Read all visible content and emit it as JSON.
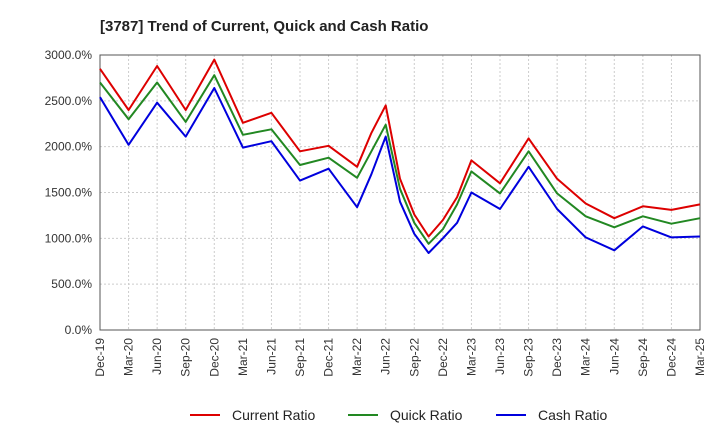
{
  "chart_data": {
    "type": "line",
    "title": "[3787]  Trend of Current, Quick and Cash Ratio",
    "xlabel": "",
    "ylabel": "",
    "ylim": [
      0,
      3000
    ],
    "y_ticks": [
      0,
      500,
      1000,
      1500,
      2000,
      2500,
      3000
    ],
    "y_tick_labels": [
      "0.0%",
      "500.0%",
      "1000.0%",
      "1500.0%",
      "2000.0%",
      "2500.0%",
      "3000.0%"
    ],
    "x_tick_labels": [
      "Dec-19",
      "Mar-20",
      "Jun-20",
      "Sep-20",
      "Dec-20",
      "Mar-21",
      "Jun-21",
      "Sep-21",
      "Dec-21",
      "Mar-22",
      "Jun-22",
      "Sep-22",
      "Dec-22",
      "Mar-23",
      "Jun-23",
      "Sep-23",
      "Dec-23",
      "Mar-24",
      "Jun-24",
      "Sep-24",
      "Dec-24",
      "Mar-25"
    ],
    "grid": true,
    "legend_position": "bottom",
    "series": [
      {
        "name": "Current Ratio",
        "color": "#dd0000",
        "points": [
          [
            0,
            2850
          ],
          [
            2,
            2400
          ],
          [
            4,
            2880
          ],
          [
            6,
            2400
          ],
          [
            8,
            2950
          ],
          [
            10,
            2260
          ],
          [
            12,
            2370
          ],
          [
            14,
            1950
          ],
          [
            16,
            2010
          ],
          [
            18,
            1780
          ],
          [
            19,
            2150
          ],
          [
            20,
            2450
          ],
          [
            21,
            1650
          ],
          [
            22,
            1260
          ],
          [
            23,
            1020
          ],
          [
            24,
            1200
          ],
          [
            25,
            1450
          ],
          [
            26,
            1850
          ],
          [
            28,
            1600
          ],
          [
            30,
            2090
          ],
          [
            32,
            1650
          ],
          [
            34,
            1380
          ],
          [
            36,
            1220
          ],
          [
            38,
            1350
          ],
          [
            40,
            1310
          ],
          [
            42,
            1370
          ]
        ]
      },
      {
        "name": "Quick Ratio",
        "color": "#228822",
        "points": [
          [
            0,
            2700
          ],
          [
            2,
            2300
          ],
          [
            4,
            2700
          ],
          [
            6,
            2270
          ],
          [
            8,
            2780
          ],
          [
            10,
            2130
          ],
          [
            12,
            2190
          ],
          [
            14,
            1800
          ],
          [
            16,
            1880
          ],
          [
            18,
            1660
          ],
          [
            19,
            1950
          ],
          [
            20,
            2240
          ],
          [
            21,
            1540
          ],
          [
            22,
            1170
          ],
          [
            23,
            940
          ],
          [
            24,
            1100
          ],
          [
            25,
            1370
          ],
          [
            26,
            1730
          ],
          [
            28,
            1490
          ],
          [
            30,
            1950
          ],
          [
            32,
            1490
          ],
          [
            34,
            1240
          ],
          [
            36,
            1120
          ],
          [
            38,
            1240
          ],
          [
            40,
            1160
          ],
          [
            42,
            1220
          ]
        ]
      },
      {
        "name": "Cash Ratio",
        "color": "#0000dd",
        "points": [
          [
            0,
            2540
          ],
          [
            2,
            2020
          ],
          [
            4,
            2480
          ],
          [
            6,
            2110
          ],
          [
            8,
            2640
          ],
          [
            10,
            1990
          ],
          [
            12,
            2060
          ],
          [
            14,
            1630
          ],
          [
            16,
            1760
          ],
          [
            18,
            1340
          ],
          [
            19,
            1700
          ],
          [
            20,
            2110
          ],
          [
            21,
            1400
          ],
          [
            22,
            1050
          ],
          [
            23,
            840
          ],
          [
            24,
            1000
          ],
          [
            25,
            1170
          ],
          [
            26,
            1500
          ],
          [
            28,
            1320
          ],
          [
            30,
            1780
          ],
          [
            32,
            1320
          ],
          [
            34,
            1010
          ],
          [
            36,
            870
          ],
          [
            38,
            1130
          ],
          [
            40,
            1010
          ],
          [
            42,
            1020
          ]
        ]
      }
    ]
  }
}
